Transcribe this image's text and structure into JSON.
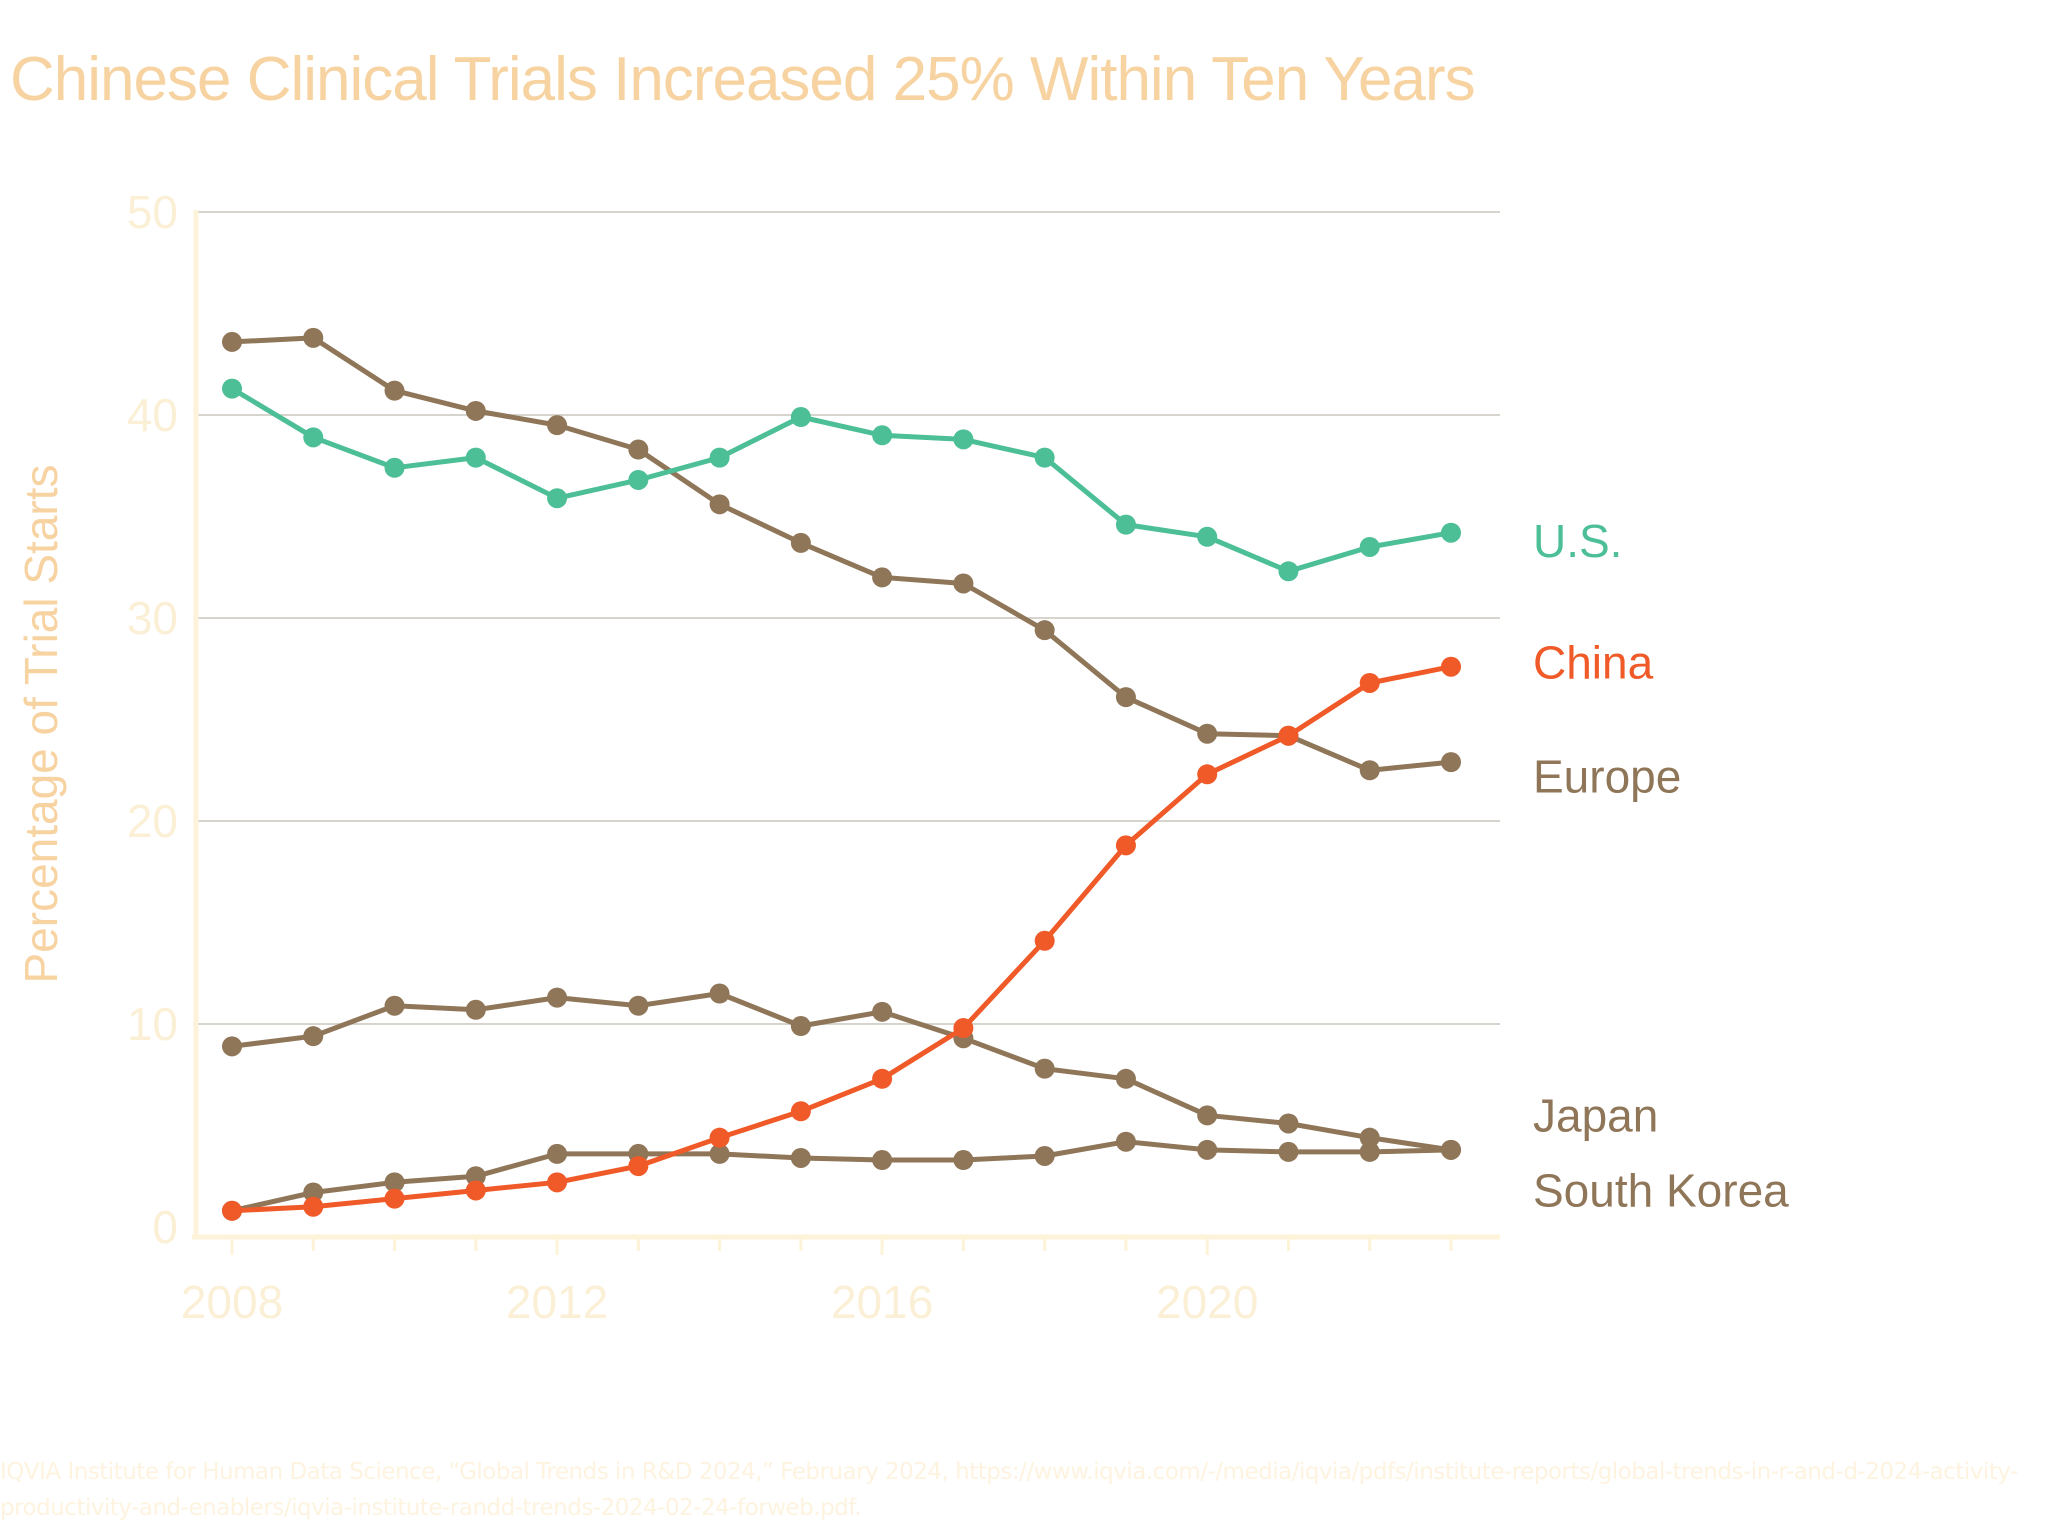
{
  "title": "Chinese Clinical Trials  Increased 25% Within Ten Years",
  "source": "IQVIA Institute for Human Data Science, “Global Trends in R&D 2024,” February 2024, https://www.iqvia.com/-/media/iqvia/pdfs/institute-reports/global-trends-in-r-and-d-2024-activity-productivity-and-enablers/iqvia-institute-randd-trends-2024-02-24-forweb.pdf.",
  "chart_data": {
    "type": "line",
    "title": "Chinese Clinical Trials  Increased 25% Within Ten Years",
    "xlabel": "",
    "ylabel": "Percentage of Trial Starts",
    "x": [
      2008,
      2009,
      2010,
      2011,
      2012,
      2013,
      2014,
      2015,
      2016,
      2017,
      2018,
      2019,
      2020,
      2021,
      2022,
      2023
    ],
    "xticks": [
      2008,
      2012,
      2016,
      2020
    ],
    "xtick_labels": [
      "2008",
      "2012",
      "2016",
      "2020"
    ],
    "xlim": [
      2007.4,
      2024.1
    ],
    "ylim": [
      0,
      50
    ],
    "yticks": [
      0,
      10,
      20,
      30,
      40,
      50
    ],
    "ytick_labels": [
      "0",
      "10",
      "20",
      "30",
      "40",
      "50"
    ],
    "grid": "horizontal",
    "legend": "right (direct labels at line ends)",
    "series": [
      {
        "name": "U.S.",
        "color": "#4dbf97",
        "label_value": 33.8,
        "values": [
          41.3,
          38.9,
          37.4,
          37.9,
          35.9,
          36.8,
          37.9,
          39.9,
          39.0,
          38.8,
          37.9,
          34.6,
          34.0,
          32.3,
          33.5,
          34.2
        ]
      },
      {
        "name": "China",
        "color": "#f05a28",
        "label_value": 27.8,
        "values": [
          0.8,
          1.0,
          1.4,
          1.8,
          2.2,
          3.0,
          4.4,
          5.7,
          7.3,
          9.8,
          14.1,
          18.8,
          22.3,
          24.2,
          26.8,
          27.6
        ]
      },
      {
        "name": "Europe",
        "color": "#8f7658",
        "label_value": 22.2,
        "values": [
          43.6,
          43.8,
          41.2,
          40.2,
          39.5,
          38.3,
          35.6,
          33.7,
          32.0,
          31.7,
          29.4,
          26.1,
          24.3,
          24.2,
          22.5,
          22.9
        ]
      },
      {
        "name": "Japan",
        "color": "#8f7658",
        "label_value": 5.5,
        "values": [
          8.9,
          9.4,
          10.9,
          10.7,
          11.3,
          10.9,
          11.5,
          9.9,
          10.6,
          9.3,
          7.8,
          7.3,
          5.5,
          5.1,
          4.4,
          3.8
        ]
      },
      {
        "name": "South Korea",
        "color": "#8f7658",
        "label_value": 1.8,
        "values": [
          0.8,
          1.7,
          2.2,
          2.5,
          3.6,
          3.6,
          3.6,
          3.4,
          3.3,
          3.3,
          3.5,
          4.2,
          3.8,
          3.7,
          3.7,
          3.8
        ]
      }
    ]
  },
  "colors": {
    "title": "#f7d3a1",
    "axis": "#fdf3d8",
    "grid": "#d6d4cc",
    "tick_text": "#fbf0d6"
  }
}
